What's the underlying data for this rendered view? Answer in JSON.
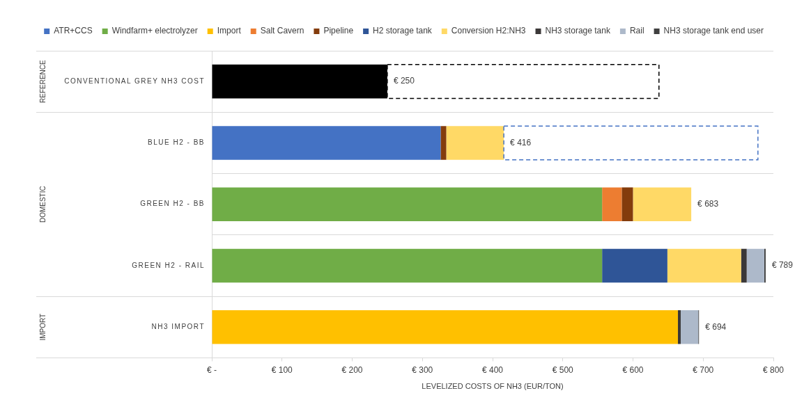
{
  "chart_data": {
    "type": "bar",
    "orientation": "horizontal",
    "stacked": true,
    "categories": [
      "CONVENTIONAL GREY NH3 COST",
      "BLUE H2 - BB",
      "GREEN H2 - BB",
      "GREEN H2 - RAIL",
      "NH3 IMPORT"
    ],
    "series": [
      {
        "color": "#000000",
        "values": [
          250,
          null,
          null,
          null,
          null
        ]
      },
      {
        "name": "ATR+CCS",
        "color": "#4472c4",
        "values": [
          null,
          326,
          null,
          null,
          null
        ]
      },
      {
        "name": "Windfarm+ electrolyzer",
        "color": "#70ad47",
        "values": [
          null,
          null,
          556,
          556,
          null
        ]
      },
      {
        "name": "Import",
        "color": "#ffc000",
        "values": [
          null,
          null,
          null,
          null,
          664
        ]
      },
      {
        "name": "Salt Cavern",
        "color": "#ed7d31",
        "values": [
          null,
          null,
          28,
          null,
          null
        ]
      },
      {
        "name": "Pipeline",
        "color": "#843c0c",
        "values": [
          null,
          8,
          16,
          null,
          null
        ]
      },
      {
        "name": "H2 storage tank",
        "color": "#2f5597",
        "values": [
          null,
          null,
          null,
          93,
          null
        ]
      },
      {
        "name": "Conversion H2:NH3",
        "color": "#ffd966",
        "values": [
          null,
          82,
          83,
          105,
          null
        ]
      },
      {
        "name": "NH3 storage tank",
        "color": "#3b3838",
        "values": [
          null,
          null,
          null,
          8,
          4
        ]
      },
      {
        "name": "Rail",
        "color": "#adb9ca",
        "values": [
          null,
          null,
          null,
          25,
          25
        ]
      },
      {
        "name": "NH3 storage tank end user",
        "color": "#404040",
        "values": [
          null,
          null,
          null,
          2,
          1
        ]
      },
      {
        "colors": [
          "#000000",
          "#4472c4",
          null,
          null,
          null
        ],
        "values": [
          387,
          362,
          null,
          null,
          null
        ],
        "line_style": "dashed"
      }
    ],
    "totals": [
      null,
      null,
      "€ 683",
      "€ 789",
      "€ 694"
    ],
    "xlim": [
      0,
      800
    ],
    "xticks": [
      {
        "value": 0,
        "label": "€ -"
      },
      {
        "value": 100,
        "label": "€ 100"
      },
      {
        "value": 200,
        "label": "€ 200"
      },
      {
        "value": 300,
        "label": "€ 300"
      },
      {
        "value": 400,
        "label": "€ 400"
      },
      {
        "value": 500,
        "label": "€ 500"
      },
      {
        "value": 600,
        "label": "€ 600"
      },
      {
        "value": 700,
        "label": "€ 700"
      },
      {
        "value": 800,
        "label": "€ 800"
      }
    ],
    "xlabel": "LEVELIZED COSTS OF NH3 (EUR/TON)",
    "annotations": [
      "REFERENCE",
      "DOMESTIC",
      "IMPORT",
      {
        "text": "€ 250",
        "x": 250,
        "y": "CONVENTIONAL GREY NH3 COST"
      },
      {
        "text": "€ 416",
        "x": 416,
        "y": "BLUE H2 - BB"
      }
    ],
    "grid": "y",
    "legend": "top"
  }
}
